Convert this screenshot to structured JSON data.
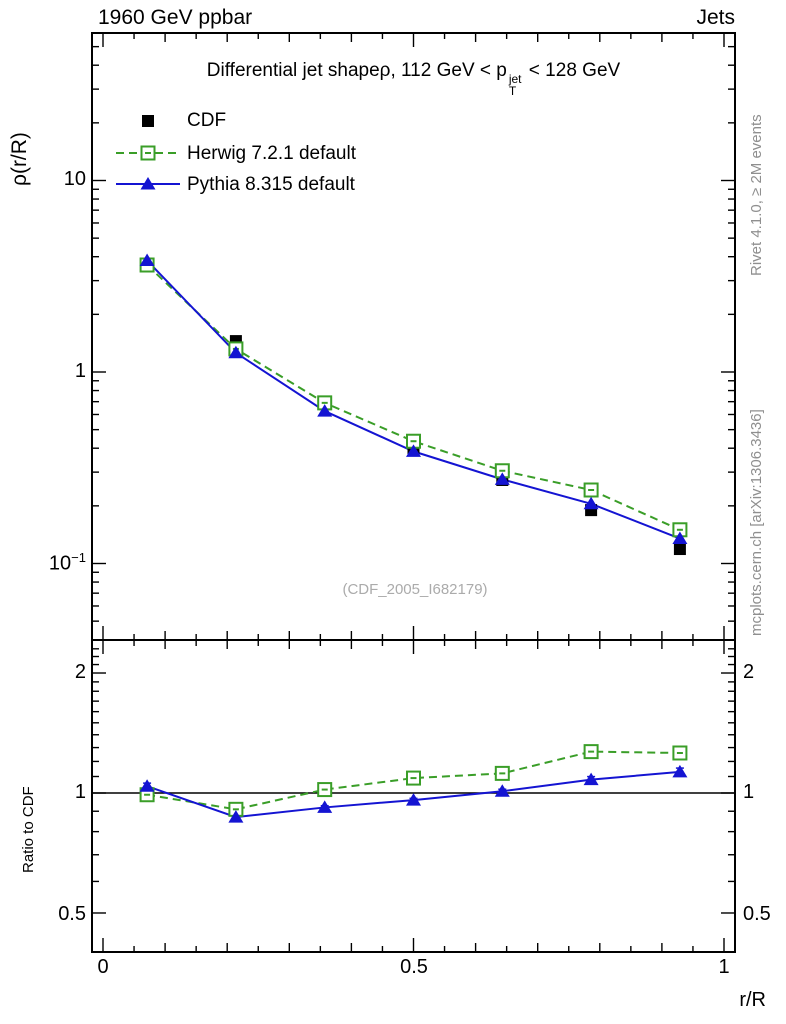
{
  "header": {
    "left": "1960 GeV ppbar",
    "right": "Jets"
  },
  "side_notes": {
    "top_right": "Rivet 4.1.0, ≥ 2M events",
    "bottom_right": "mcplots.cern.ch [arXiv:1306.3436]"
  },
  "watermark": "(CDF_2005_I682179)",
  "main_panel": {
    "title_prefix": "Differential jet shapeρ, 112 GeV < p",
    "title_sup": "jet",
    "title_sub": "T",
    "title_suffix": " < 128 GeV",
    "ylabel": "ρ(r/R)",
    "ytick_top": "10",
    "ytick_mid": "1",
    "ytick_bot_base": "10",
    "ytick_bot_exp": "−1"
  },
  "ratio_panel": {
    "ylabel": "Ratio to CDF",
    "tick_2": "2",
    "tick_1": "1",
    "tick_05": "0.5"
  },
  "xaxis": {
    "t0": "0",
    "t05": "0.5",
    "t1": "1",
    "label": "r/R"
  },
  "colors": {
    "cdf": "#000000",
    "herwig": "#3a9e28",
    "pythia": "#1414d2",
    "frame": "#000000",
    "note_gray": "#8f8f8f",
    "watermark_gray": "#ababab"
  },
  "chart_data": [
    {
      "type": "line",
      "panel": "main",
      "title": "Differential jet shapeρ, 112 GeV < p_T^jet < 128 GeV",
      "xlabel": "r/R",
      "ylabel": "ρ(r/R)",
      "yscale": "log",
      "xscale": "linear",
      "xlim": [
        -0.018,
        1.018
      ],
      "ylim": [
        0.04,
        59
      ],
      "grid": false,
      "legend_position": "top-left-inside",
      "x": [
        0.071,
        0.214,
        0.357,
        0.5,
        0.643,
        0.786,
        0.929
      ],
      "series": [
        {
          "name": "CDF",
          "color": "#000000",
          "marker": "filled-square",
          "line": "none",
          "values": [
            3.67,
            1.45,
            0.68,
            0.4,
            0.273,
            0.19,
            0.119
          ]
        },
        {
          "name": "Herwig 7.2.1 default",
          "color": "#3a9e28",
          "marker": "open-square",
          "line": "dashed",
          "values": [
            3.62,
            1.32,
            0.69,
            0.435,
            0.305,
            0.242,
            0.15
          ]
        },
        {
          "name": "Pythia 8.315 default",
          "color": "#1414d2",
          "marker": "filled-triangle",
          "line": "solid",
          "values": [
            3.82,
            1.26,
            0.625,
            0.385,
            0.275,
            0.205,
            0.135
          ]
        }
      ]
    },
    {
      "type": "line",
      "panel": "ratio",
      "ylabel": "Ratio to CDF",
      "yscale": "log",
      "ylim": [
        0.4,
        2.42
      ],
      "reference_line": 1,
      "x": [
        0.071,
        0.214,
        0.357,
        0.5,
        0.643,
        0.786,
        0.929
      ],
      "series": [
        {
          "name": "Herwig 7.2.1 default",
          "color": "#3a9e28",
          "marker": "open-square",
          "line": "dashed",
          "values": [
            0.99,
            0.91,
            1.02,
            1.09,
            1.12,
            1.27,
            1.26
          ],
          "yerr_frac": [
            0.008,
            0.008,
            0.008,
            0.008,
            0.01,
            0.015,
            0.015
          ]
        },
        {
          "name": "Pythia 8.315 default",
          "color": "#1414d2",
          "marker": "filled-triangle",
          "line": "solid",
          "values": [
            1.04,
            0.87,
            0.92,
            0.96,
            1.01,
            1.08,
            1.13
          ],
          "yerr_frac": [
            0.018,
            0.012,
            0.01,
            0.01,
            0.012,
            0.018,
            0.022
          ]
        }
      ]
    }
  ]
}
